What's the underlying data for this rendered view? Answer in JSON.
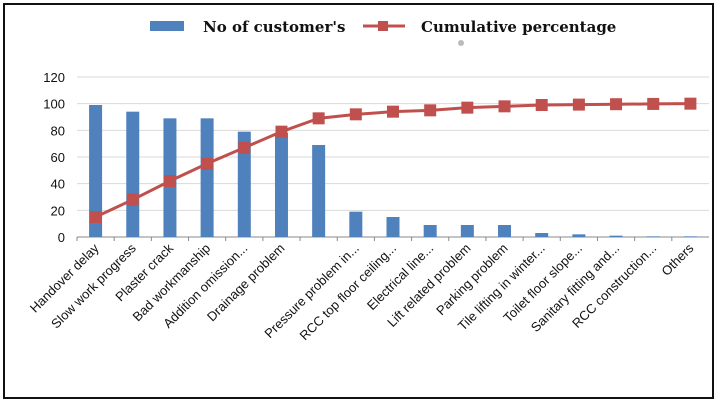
{
  "chart_data": {
    "type": "bar",
    "categories": [
      "Handover delay",
      "Slow work progress",
      "Plaster crack",
      "Bad workmanship",
      "Addition omission...",
      "Drainage problem",
      "",
      "Pressure problem in...",
      "RCC top floor ceiling...",
      "Electrical line...",
      "Lift related problem",
      "Parking problem",
      "Tile lifting in winter...",
      "Toilet floor slope...",
      "Sanitary fitting and...",
      "RCC construction...",
      "Others"
    ],
    "series": [
      {
        "name": "No of customer's",
        "type": "bar",
        "color": "#4f81bd",
        "values": [
          99,
          94,
          89,
          89,
          79,
          78,
          69,
          19,
          15,
          9,
          9,
          9,
          3,
          2,
          1,
          0.5,
          0.5
        ]
      },
      {
        "name": "Cumulative percentage",
        "type": "line",
        "color": "#c0504d",
        "values": [
          15,
          28,
          42,
          55,
          67,
          79,
          89,
          92,
          94,
          95,
          97,
          98,
          99,
          99.3,
          99.6,
          99.8,
          100
        ]
      }
    ],
    "ylim": [
      0,
      120
    ],
    "yticks": [
      0,
      20,
      40,
      60,
      80,
      100,
      120
    ],
    "grid": true,
    "legend_position": "top"
  }
}
